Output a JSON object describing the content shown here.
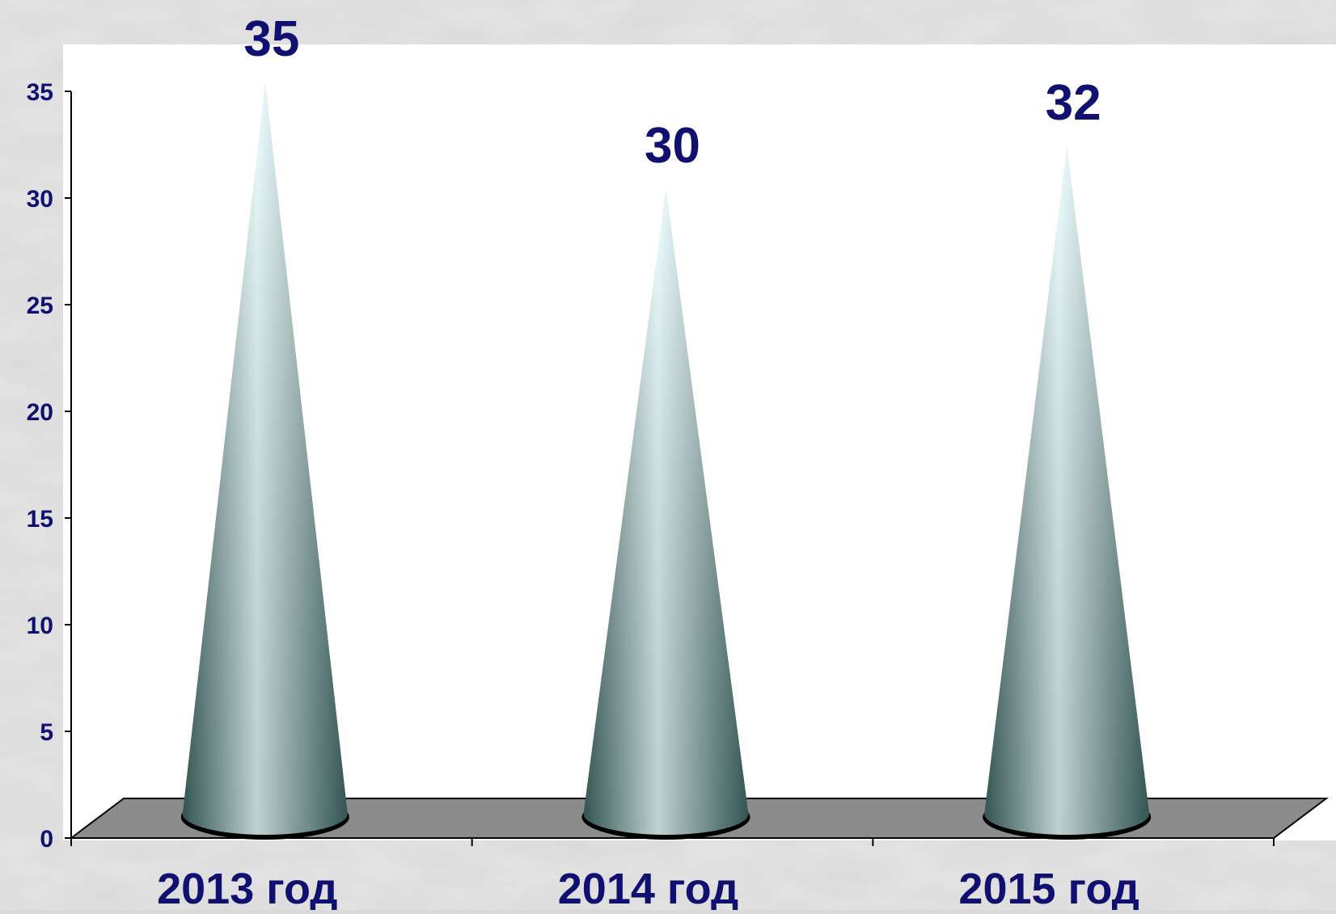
{
  "chart_data": {
    "type": "bar",
    "shape": "cone",
    "title": "",
    "xlabel": "",
    "ylabel": "",
    "categories": [
      "2013 год",
      "2014 год",
      "2015 год"
    ],
    "series": [
      {
        "values": [
          35,
          30,
          32
        ]
      }
    ],
    "data_labels": [
      "35",
      "30",
      "32"
    ],
    "ylim": [
      0,
      35
    ],
    "yticks": [
      "0",
      "5",
      "10",
      "15",
      "20",
      "25",
      "30",
      "35"
    ],
    "grid": false,
    "legend": "none"
  },
  "colors": {
    "background": "#d9d9d9",
    "plot_area": "#ffffff",
    "floor": "#8c8c8c",
    "text": "#101070",
    "cone_light": "#e8ffff",
    "cone_dark": "#3d6663"
  }
}
